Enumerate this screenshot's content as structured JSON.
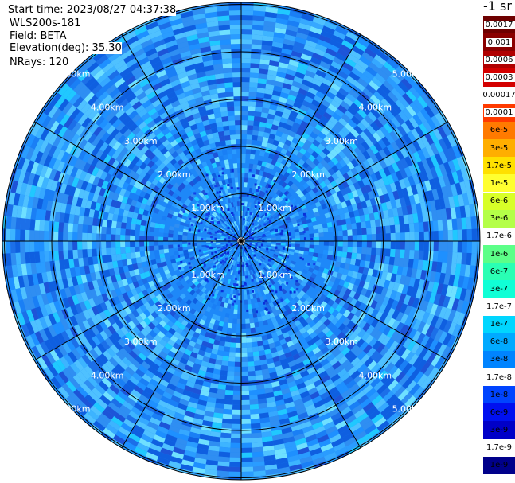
{
  "header": {
    "start_time": "Start time: 2023/08/27 04:37:38",
    "instrument": "WLS200s-181",
    "field": "Field: BETA",
    "elevation": "Elevation(deg): 35.30",
    "nrays": "NRays: 120"
  },
  "unit_label": "-1 sr",
  "ring_labels": [
    "1.00km",
    "2.00km",
    "3.00km",
    "4.00km",
    "5.00km"
  ],
  "colorbar": [
    {
      "label": "0.0017",
      "color": "#6e0000",
      "text": "#000000",
      "boxed": true
    },
    {
      "label": "0.001",
      "color": "#8a0000",
      "text": "#000000",
      "boxed": true
    },
    {
      "label": "0.0006",
      "color": "#b00000",
      "text": "#000000",
      "boxed": true
    },
    {
      "label": "0.0003",
      "color": "#d40000",
      "text": "#000000",
      "boxed": true
    },
    {
      "label": "0.00017",
      "color": "#ffffff",
      "text": "#000000",
      "boxed": false
    },
    {
      "label": "0.0001",
      "color": "#ff3a00",
      "text": "#000000",
      "boxed": true
    },
    {
      "label": "6e-5",
      "color": "#ff7a00",
      "text": "#000000",
      "boxed": false
    },
    {
      "label": "3e-5",
      "color": "#ffae00",
      "text": "#000000",
      "boxed": false
    },
    {
      "label": "1.7e-5",
      "color": "#ffe000",
      "text": "#000000",
      "boxed": false
    },
    {
      "label": "1e-5",
      "color": "#ffff30",
      "text": "#000000",
      "boxed": false
    },
    {
      "label": "6e-6",
      "color": "#d8ff28",
      "text": "#000000",
      "boxed": false
    },
    {
      "label": "3e-6",
      "color": "#b4ff48",
      "text": "#000000",
      "boxed": false
    },
    {
      "label": "1.7e-6",
      "color": "#ffffff",
      "text": "#000000",
      "boxed": false
    },
    {
      "label": "1e-6",
      "color": "#5cff88",
      "text": "#000000",
      "boxed": false
    },
    {
      "label": "6e-7",
      "color": "#2affb4",
      "text": "#000000",
      "boxed": false
    },
    {
      "label": "3e-7",
      "color": "#10ffd6",
      "text": "#000000",
      "boxed": false
    },
    {
      "label": "1.7e-7",
      "color": "#ffffff",
      "text": "#000000",
      "boxed": false
    },
    {
      "label": "1e-7",
      "color": "#00d6ff",
      "text": "#000000",
      "boxed": false
    },
    {
      "label": "6e-8",
      "color": "#00aaff",
      "text": "#000000",
      "boxed": false
    },
    {
      "label": "3e-8",
      "color": "#0084ff",
      "text": "#000000",
      "boxed": false
    },
    {
      "label": "1.7e-8",
      "color": "#ffffff",
      "text": "#000000",
      "boxed": false
    },
    {
      "label": "1e-8",
      "color": "#0044ff",
      "text": "#000000",
      "boxed": false
    },
    {
      "label": "6e-9",
      "color": "#0010f0",
      "text": "#000000",
      "boxed": false
    },
    {
      "label": "3e-9",
      "color": "#0000c8",
      "text": "#000000",
      "boxed": false
    },
    {
      "label": "1.7e-9",
      "color": "#ffffff",
      "text": "#000000",
      "boxed": false
    },
    {
      "label": "1e-9",
      "color": "#00008a",
      "text": "#000000",
      "boxed": false
    }
  ],
  "field_palette": [
    "#1e90ff",
    "#1a7ff5",
    "#2a9cff",
    "#1c6fe8",
    "#36a8ff",
    "#4fc1ff",
    "#2f8ef2",
    "#0f5fe0",
    "#3db4ff",
    "#20c8ff",
    "#6fe0ff",
    "#1d54d8"
  ]
}
